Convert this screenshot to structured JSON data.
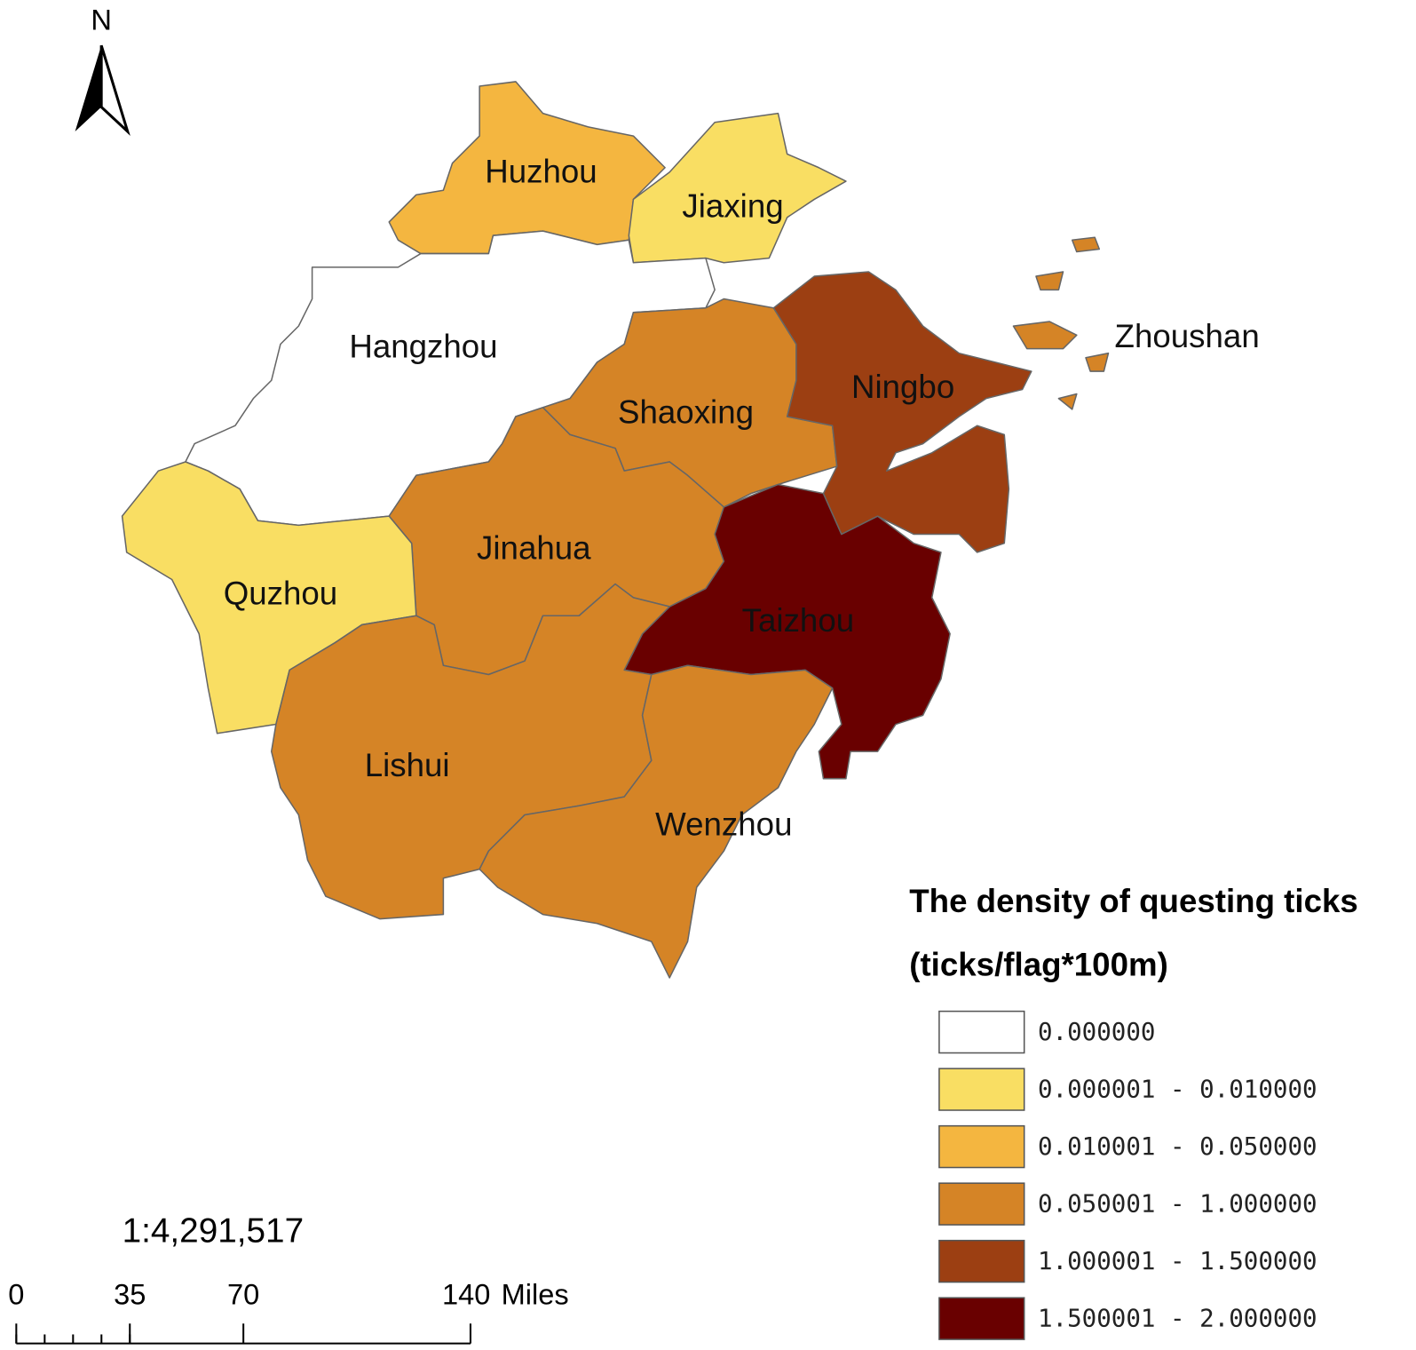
{
  "north_arrow": {
    "label": "N"
  },
  "regions": [
    {
      "name": "Huzhou",
      "color": "#f4b640"
    },
    {
      "name": "Jiaxing",
      "color": "#f9de63"
    },
    {
      "name": "Hangzhou",
      "color": "#ffffff"
    },
    {
      "name": "Shaoxing",
      "color": "#d58426"
    },
    {
      "name": "Ningbo",
      "color": "#9c3f12"
    },
    {
      "name": "Zhoushan",
      "color": "#d58426"
    },
    {
      "name": "Jinahua",
      "color": "#d58426"
    },
    {
      "name": "Quzhou",
      "color": "#f9de63"
    },
    {
      "name": "Taizhou",
      "color": "#690000"
    },
    {
      "name": "Lishui",
      "color": "#d58426"
    },
    {
      "name": "Wenzhou",
      "color": "#d58426"
    }
  ],
  "legend": {
    "title": "The density of questing ticks",
    "subtitle": "(ticks/flag*100m)",
    "items": [
      {
        "label": "0.000000",
        "color": "#ffffff"
      },
      {
        "label": "0.000001 - 0.010000",
        "color": "#f9de63"
      },
      {
        "label": "0.010001 - 0.050000",
        "color": "#f4b640"
      },
      {
        "label": "0.050001 - 1.000000",
        "color": "#d58426"
      },
      {
        "label": "1.000001 - 1.500000",
        "color": "#9c3f12"
      },
      {
        "label": "1.500001 - 2.000000",
        "color": "#690000"
      }
    ]
  },
  "scale": {
    "ratio": "1:4,291,517",
    "ticks": [
      0,
      35,
      70,
      140
    ],
    "unit": "Miles"
  }
}
